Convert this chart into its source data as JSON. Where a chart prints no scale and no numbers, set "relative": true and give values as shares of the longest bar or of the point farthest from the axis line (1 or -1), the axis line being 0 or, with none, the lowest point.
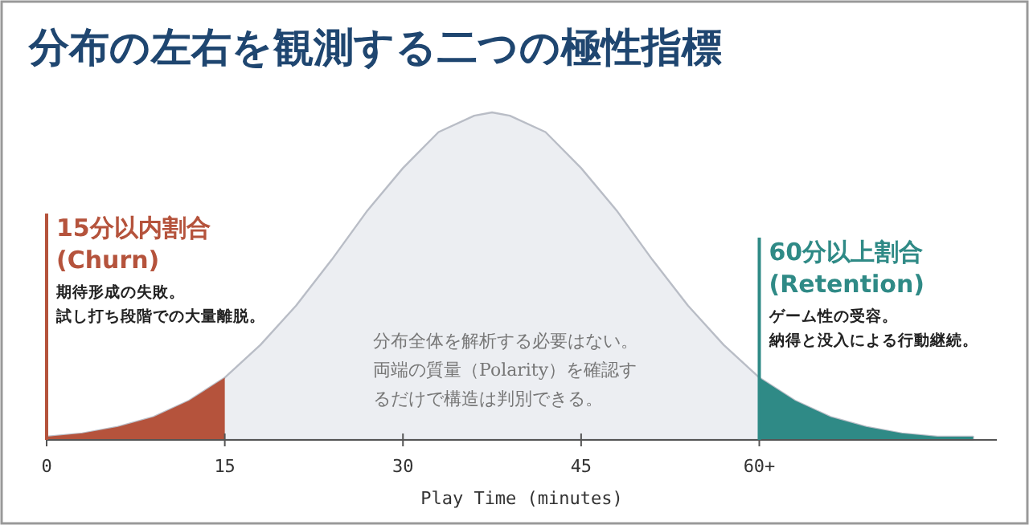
{
  "chart_data": {
    "type": "area",
    "relative": true,
    "title": "分布の左右を観測する二つの極性指標",
    "xlabel": "Play Time (minutes)",
    "xlim": [
      0,
      80
    ],
    "xticks": [
      0,
      15,
      30,
      45,
      {
        "value": 60,
        "label": "60+"
      }
    ],
    "series": [
      {
        "color": "#eceef2",
        "x": [
          0,
          3,
          6,
          9,
          12,
          15,
          18,
          21,
          24,
          27,
          30,
          33,
          36,
          37.5,
          39,
          42,
          45,
          48,
          51,
          54,
          57,
          60,
          63,
          66,
          69,
          72,
          75,
          78
        ],
        "values": [
          0.01,
          0.02,
          0.04,
          0.07,
          0.12,
          0.19,
          0.29,
          0.41,
          0.55,
          0.7,
          0.83,
          0.94,
          0.99,
          1,
          0.99,
          0.94,
          0.83,
          0.7,
          0.55,
          0.41,
          0.29,
          0.19,
          0.12,
          0.07,
          0.04,
          0.02,
          0.01,
          0.01
        ]
      },
      {
        "color": "#b5533c",
        "x": [
          0,
          3,
          6,
          9,
          12,
          15
        ],
        "values": [
          0.01,
          0.02,
          0.04,
          0.07,
          0.12,
          0.19
        ]
      },
      {
        "color": "#2f8a86",
        "x": [
          60,
          63,
          66,
          69,
          72,
          75,
          78
        ],
        "values": [
          0.19,
          0.12,
          0.07,
          0.04,
          0.02,
          0.01,
          0.01
        ]
      }
    ],
    "ref_lines": [
      {
        "axis": "x",
        "value": 0,
        "label": "15分以内割合\n(Churn)",
        "color": "#b5533c"
      },
      {
        "axis": "x",
        "value": 60,
        "label": "60分以上割合\n(Retention)",
        "color": "#2f8a86"
      }
    ],
    "annotations": [
      {
        "text": "期待形成の失敗。試し打ち段階での大量離脱。",
        "x": 0
      },
      {
        "text": "ゲーム性の受容。納得と没入による行動継続。",
        "x": 60
      },
      "分布全体を解析する必要はない。両端の質量（Polarity）を確認するだけで構造は判別できる。"
    ]
  }
}
